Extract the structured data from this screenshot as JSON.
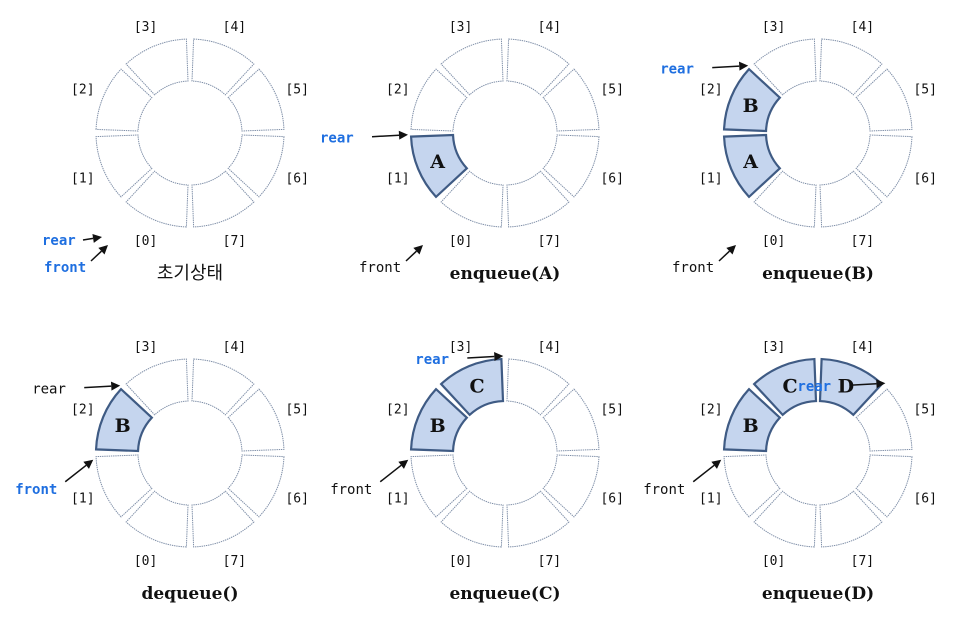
{
  "index_labels": [
    "[0]",
    "[1]",
    "[2]",
    "[3]",
    "[4]",
    "[5]",
    "[6]",
    "[7]"
  ],
  "colors": {
    "filled_fill": "#c5d5ee",
    "filled_stroke": "#3f5b84",
    "empty_stroke": "#7f8fa8",
    "highlight_text": "#1f6fe0"
  },
  "panels": [
    {
      "caption": "초기상태",
      "caption_style": "korean",
      "filled": [],
      "pointers": [
        {
          "text": "rear",
          "target": 0,
          "highlight": true
        },
        {
          "text": "front",
          "target": 0,
          "highlight": true
        }
      ]
    },
    {
      "caption": "enqueue(A)",
      "caption_style": "serif",
      "filled": [
        {
          "slot": 1,
          "letter": "A"
        }
      ],
      "pointers": [
        {
          "text": "rear",
          "target": 1,
          "highlight": true
        },
        {
          "text": "front",
          "target": 0,
          "highlight": false
        }
      ]
    },
    {
      "caption": "enqueue(B)",
      "caption_style": "serif",
      "filled": [
        {
          "slot": 1,
          "letter": "A"
        },
        {
          "slot": 2,
          "letter": "B"
        }
      ],
      "pointers": [
        {
          "text": "rear",
          "target": 2,
          "highlight": true
        },
        {
          "text": "front",
          "target": 0,
          "highlight": false
        }
      ]
    },
    {
      "caption": "dequeue()",
      "caption_style": "serif",
      "filled": [
        {
          "slot": 2,
          "letter": "B"
        }
      ],
      "pointers": [
        {
          "text": "rear",
          "target": 2,
          "highlight": false
        },
        {
          "text": "front",
          "target": 1,
          "highlight": true
        }
      ]
    },
    {
      "caption": "enqueue(C)",
      "caption_style": "serif",
      "filled": [
        {
          "slot": 2,
          "letter": "B"
        },
        {
          "slot": 3,
          "letter": "C"
        }
      ],
      "pointers": [
        {
          "text": "rear",
          "target": 3,
          "highlight": true
        },
        {
          "text": "front",
          "target": 1,
          "highlight": false
        }
      ]
    },
    {
      "caption": "enqueue(D)",
      "caption_style": "serif",
      "filled": [
        {
          "slot": 2,
          "letter": "B"
        },
        {
          "slot": 3,
          "letter": "C"
        },
        {
          "slot": 4,
          "letter": "D"
        }
      ],
      "pointers": [
        {
          "text": "rear",
          "target": 4,
          "highlight": true
        },
        {
          "text": "front",
          "target": 1,
          "highlight": false
        }
      ]
    }
  ]
}
